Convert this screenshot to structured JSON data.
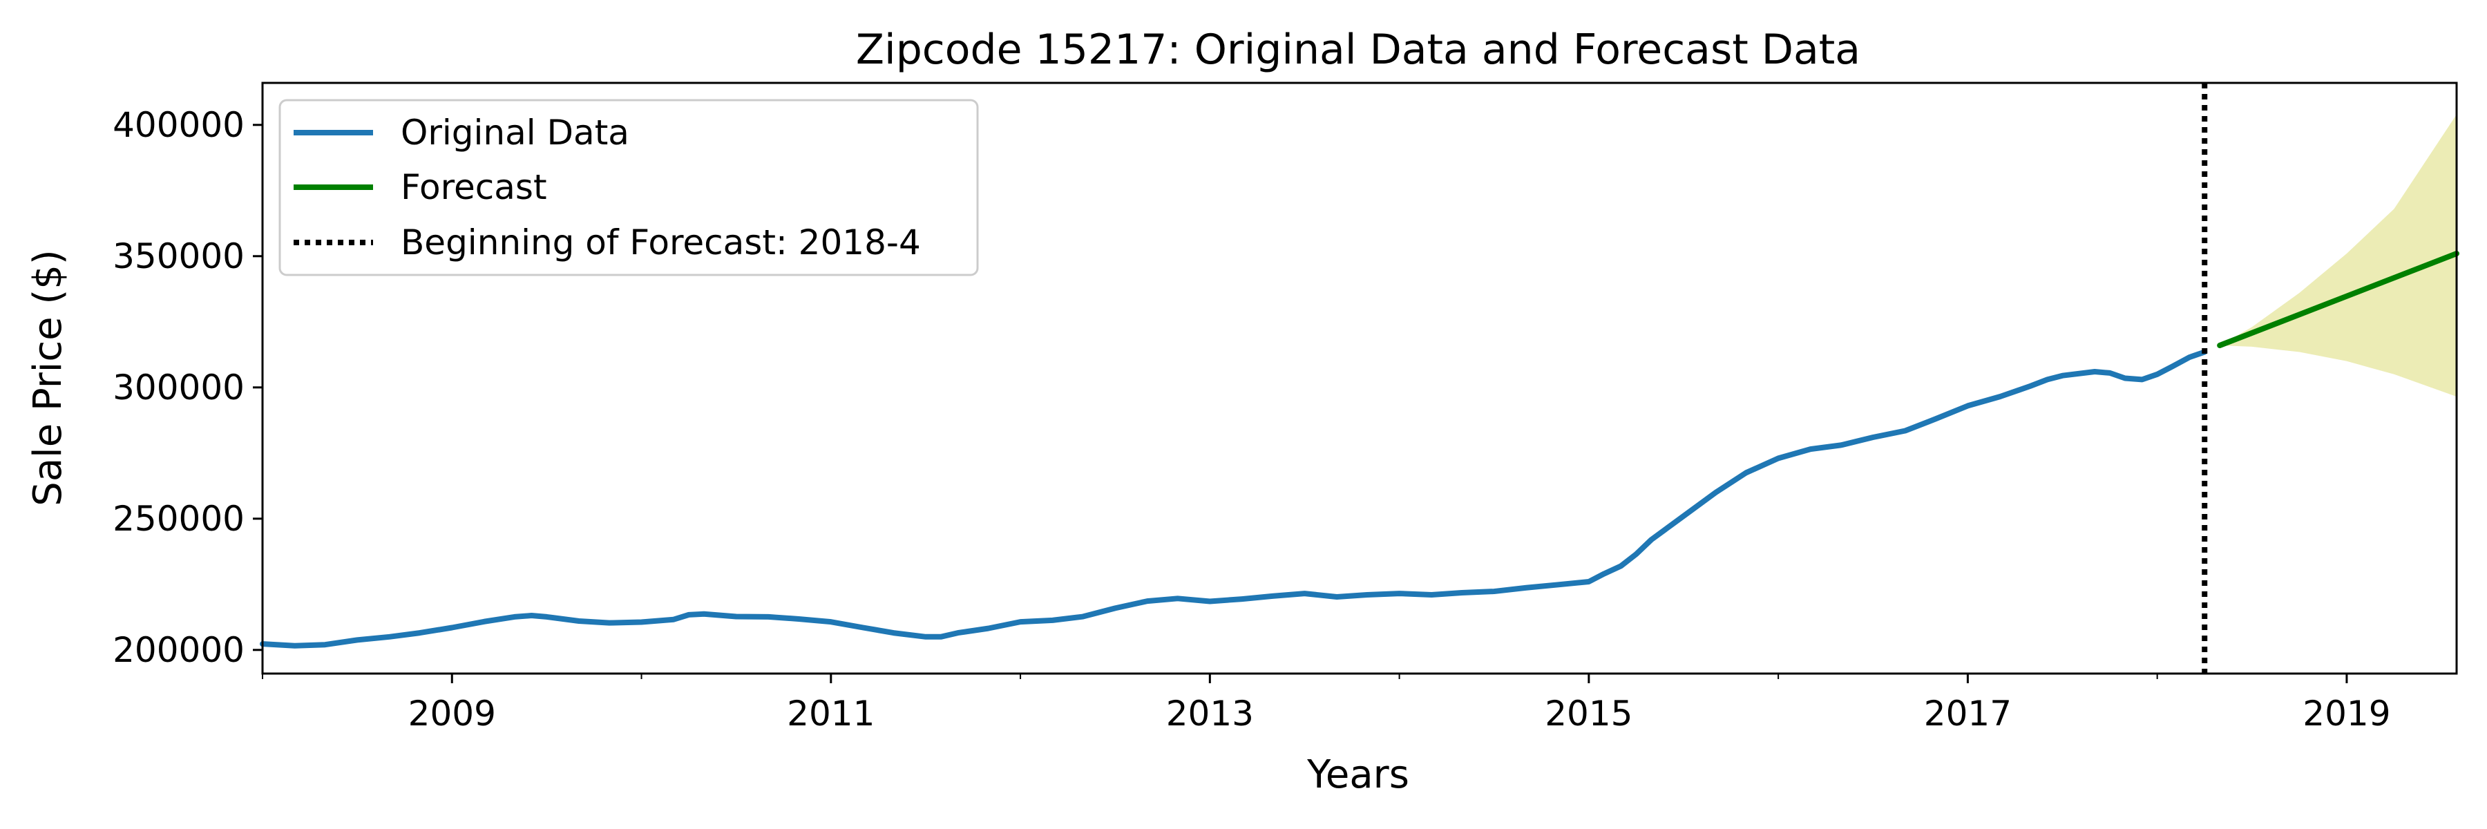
{
  "chart_data": {
    "type": "line",
    "title": "Zipcode 15217: Original Data and Forecast Data",
    "xlabel": "Years",
    "ylabel": "Sale Price ($)",
    "xlim": [
      2008.0,
      2019.58
    ],
    "ylim": [
      191000,
      416000
    ],
    "x_ticks": [
      2009,
      2011,
      2013,
      2015,
      2017,
      2019
    ],
    "x_minor_ticks": [
      2008,
      2010,
      2012,
      2014,
      2016,
      2018
    ],
    "y_ticks": [
      200000,
      250000,
      300000,
      350000,
      400000
    ],
    "grid": false,
    "legend_position": "upper-left",
    "forecast_start": 2018.25,
    "series": [
      {
        "name": "Original Data",
        "color": "#1f77b4",
        "x": [
          2008.0,
          2008.17,
          2008.33,
          2008.5,
          2008.67,
          2008.83,
          2009.0,
          2009.17,
          2009.33,
          2009.42,
          2009.5,
          2009.67,
          2009.83,
          2010.0,
          2010.17,
          2010.25,
          2010.33,
          2010.5,
          2010.67,
          2010.83,
          2011.0,
          2011.17,
          2011.33,
          2011.5,
          2011.58,
          2011.67,
          2011.83,
          2012.0,
          2012.17,
          2012.33,
          2012.5,
          2012.67,
          2012.83,
          2013.0,
          2013.17,
          2013.33,
          2013.5,
          2013.67,
          2013.83,
          2014.0,
          2014.17,
          2014.33,
          2014.5,
          2014.67,
          2014.83,
          2015.0,
          2015.08,
          2015.17,
          2015.25,
          2015.33,
          2015.5,
          2015.67,
          2015.83,
          2016.0,
          2016.17,
          2016.33,
          2016.5,
          2016.67,
          2016.83,
          2017.0,
          2017.17,
          2017.33,
          2017.42,
          2017.5,
          2017.67,
          2017.75,
          2017.83,
          2017.92,
          2018.0,
          2018.08,
          2018.17,
          2018.25
        ],
        "values": [
          202300,
          201600,
          202000,
          203800,
          205000,
          206500,
          208500,
          210800,
          212600,
          213100,
          212600,
          211000,
          210300,
          210600,
          211600,
          213400,
          213700,
          212700,
          212600,
          211800,
          210700,
          208500,
          206500,
          205000,
          205000,
          206500,
          208200,
          210700,
          211300,
          212700,
          215900,
          218600,
          219600,
          218500,
          219400,
          220500,
          221500,
          220200,
          221000,
          221500,
          221000,
          221800,
          222300,
          223700,
          224800,
          226000,
          229000,
          232000,
          236500,
          242000,
          251000,
          260000,
          267500,
          273000,
          276500,
          278000,
          281000,
          283500,
          288000,
          293000,
          296500,
          300500,
          303000,
          304500,
          306000,
          305500,
          303500,
          303000,
          305000,
          308000,
          311500,
          313500
        ]
      },
      {
        "name": "Forecast",
        "color": "#008000",
        "x": [
          2018.33,
          2019.58
        ],
        "values": [
          316000,
          351000
        ]
      }
    ],
    "confidence_band": {
      "color": "#d4d45a",
      "x": [
        2018.33,
        2018.5,
        2018.75,
        2019.0,
        2019.25,
        2019.58
      ],
      "lower": [
        316000,
        315500,
        313500,
        310000,
        305000,
        296500
      ],
      "upper": [
        316000,
        323000,
        336000,
        351000,
        368000,
        404000
      ]
    },
    "forecast_line": {
      "name": "Beginning of Forecast: 2018-4",
      "color": "#000000"
    }
  }
}
